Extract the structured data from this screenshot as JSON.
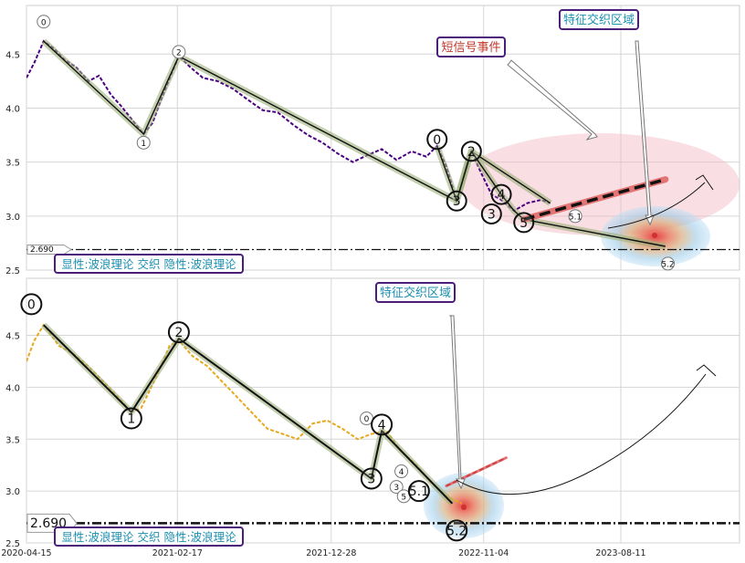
{
  "chart_data": [
    {
      "type": "line",
      "panel": "top",
      "ylim": [
        2.5,
        4.95
      ],
      "y_ticks": [
        2.5,
        3.0,
        3.5,
        4.0,
        4.5
      ],
      "y_tick_labels": [
        "2.5",
        "3.0",
        "3.5",
        "4.0",
        "4.5"
      ],
      "grid": true,
      "series": [
        {
          "style": "purple-dashed-price",
          "color": "#4b0082",
          "points": [
            [
              "2020-04-15",
              4.28
            ],
            [
              "2020-05-01",
              4.42
            ],
            [
              "2020-05-20",
              4.62
            ],
            [
              "2020-06-10",
              4.55
            ],
            [
              "2020-07-01",
              4.45
            ],
            [
              "2020-07-25",
              4.38
            ],
            [
              "2020-08-20",
              4.25
            ],
            [
              "2020-09-10",
              4.3
            ],
            [
              "2020-10-05",
              4.12
            ],
            [
              "2020-10-25",
              4.02
            ],
            [
              "2020-11-15",
              3.9
            ],
            [
              "2020-12-10",
              3.76
            ],
            [
              "2020-12-28",
              3.86
            ],
            [
              "2021-01-15",
              4.08
            ],
            [
              "2021-02-05",
              4.32
            ],
            [
              "2021-02-20",
              4.48
            ],
            [
              "2021-03-15",
              4.38
            ],
            [
              "2021-04-10",
              4.28
            ],
            [
              "2021-05-10",
              4.25
            ],
            [
              "2021-06-10",
              4.18
            ],
            [
              "2021-07-10",
              4.08
            ],
            [
              "2021-08-10",
              3.98
            ],
            [
              "2021-09-10",
              3.96
            ],
            [
              "2021-10-10",
              3.85
            ],
            [
              "2021-11-10",
              3.75
            ],
            [
              "2021-12-10",
              3.68
            ],
            [
              "2022-01-10",
              3.58
            ],
            [
              "2022-02-10",
              3.5
            ],
            [
              "2022-03-10",
              3.56
            ],
            [
              "2022-04-10",
              3.62
            ],
            [
              "2022-05-10",
              3.52
            ],
            [
              "2022-06-10",
              3.6
            ],
            [
              "2022-07-10",
              3.55
            ],
            [
              "2022-08-01",
              3.65
            ],
            [
              "2022-08-20",
              3.46
            ],
            [
              "2022-09-10",
              3.14
            ],
            [
              "2022-10-01",
              3.48
            ],
            [
              "2022-10-10",
              3.6
            ],
            [
              "2022-10-30",
              3.4
            ],
            [
              "2022-11-20",
              3.2
            ],
            [
              "2022-12-10",
              3.15
            ],
            [
              "2023-01-05",
              3.05
            ],
            [
              "2023-02-01",
              3.12
            ],
            [
              "2023-03-01",
              3.15
            ],
            [
              "2023-03-20",
              3.12
            ]
          ]
        },
        {
          "style": "wave-zigzag",
          "points": [
            [
              "2020-05-20",
              4.62
            ],
            [
              "2020-12-10",
              3.76
            ],
            [
              "2021-02-20",
              4.48
            ],
            [
              "2022-09-10",
              3.14
            ],
            [
              "2022-10-01",
              3.48
            ],
            [
              "2022-10-10",
              3.6
            ],
            [
              "2023-03-20",
              3.12
            ]
          ]
        },
        {
          "style": "wave-zigzag",
          "points": [
            [
              "2022-08-01",
              3.65
            ],
            [
              "2022-09-10",
              3.14
            ],
            [
              "2022-10-10",
              3.6
            ],
            [
              "2022-12-10",
              3.2
            ],
            [
              "2023-01-05",
              3.05
            ],
            [
              "2023-01-25",
              2.97
            ],
            [
              "2023-11-10",
              2.72
            ]
          ]
        },
        {
          "style": "red-dashed-projection",
          "points": [
            [
              "2023-01-25",
              2.97
            ],
            [
              "2023-11-10",
              3.34
            ]
          ]
        }
      ],
      "wave_markers": [
        {
          "label": "0",
          "x": "2020-05-20",
          "y": 4.8
        },
        {
          "label": "1",
          "x": "2020-12-10",
          "y": 3.68
        },
        {
          "label": "2",
          "x": "2021-02-20",
          "y": 4.52
        },
        {
          "label": "0",
          "x": "2022-08-01",
          "y": 3.71
        },
        {
          "label": "3",
          "x": "2022-09-10",
          "y": 3.14
        },
        {
          "label": "2",
          "x": "2022-10-10",
          "y": 3.6
        },
        {
          "label": "4",
          "x": "2022-12-10",
          "y": 3.2
        },
        {
          "label": "3",
          "x": "2022-11-20",
          "y": 3.02
        },
        {
          "label": "5",
          "x": "2023-01-25",
          "y": 2.94
        },
        {
          "label": "5.1",
          "x": "2023-05-10",
          "y": 3.0
        },
        {
          "label": "5.2",
          "x": "2023-11-15",
          "y": 2.56
        }
      ],
      "hline": {
        "value": 2.69,
        "label": "2.690"
      },
      "annotations": [
        {
          "text": "短信号事件",
          "target": [
            "2022-11-20",
            3.72
          ]
        },
        {
          "text": "特征交织区域",
          "target": [
            "2023-06-15",
            2.96
          ]
        }
      ],
      "legend_text": "显性:波浪理论 交织 隐性:波浪理论"
    },
    {
      "type": "line",
      "panel": "bottom",
      "ylim": [
        2.5,
        5.05
      ],
      "y_ticks": [
        2.5,
        3.0,
        3.5,
        4.0,
        4.5
      ],
      "y_tick_labels": [
        "2.5",
        "3.0",
        "3.5",
        "4.0",
        "4.5"
      ],
      "x_ticks": [
        "2020-04-15",
        "2021-02-17",
        "2021-12-28",
        "2022-11-04",
        "2023-08-11"
      ],
      "x_tick_labels": [
        "2020-04-15",
        "2021-02-17",
        "2021-12-28",
        "2022-11-04",
        "2023-08-11"
      ],
      "grid": true,
      "series": [
        {
          "style": "orange-dashed-price",
          "color": "#e8a81c",
          "points": [
            [
              "2020-04-15",
              4.25
            ],
            [
              "2020-05-01",
              4.45
            ],
            [
              "2020-05-20",
              4.6
            ],
            [
              "2020-06-20",
              4.4
            ],
            [
              "2020-07-20",
              4.32
            ],
            [
              "2020-08-20",
              4.2
            ],
            [
              "2020-09-20",
              4.05
            ],
            [
              "2020-10-20",
              3.9
            ],
            [
              "2020-11-15",
              3.76
            ],
            [
              "2020-12-05",
              3.8
            ],
            [
              "2021-01-05",
              4.1
            ],
            [
              "2021-02-01",
              4.4
            ],
            [
              "2021-02-20",
              4.45
            ],
            [
              "2021-03-20",
              4.3
            ],
            [
              "2021-04-20",
              4.2
            ],
            [
              "2021-05-20",
              4.05
            ],
            [
              "2021-06-20",
              3.9
            ],
            [
              "2021-07-20",
              3.75
            ],
            [
              "2021-08-20",
              3.6
            ],
            [
              "2021-09-20",
              3.55
            ],
            [
              "2021-10-20",
              3.5
            ],
            [
              "2021-11-20",
              3.65
            ],
            [
              "2021-12-20",
              3.68
            ],
            [
              "2022-01-20",
              3.6
            ],
            [
              "2022-02-20",
              3.5
            ],
            [
              "2022-03-20",
              3.55
            ],
            [
              "2022-04-20",
              3.58
            ],
            [
              "2022-05-20",
              3.38
            ],
            [
              "2022-06-20",
              3.25
            ],
            [
              "2022-07-20",
              3.08
            ],
            [
              "2022-08-20",
              2.95
            ],
            [
              "2022-09-20",
              2.88
            ]
          ]
        },
        {
          "style": "wave-zigzag",
          "points": [
            [
              "2020-05-20",
              4.6
            ],
            [
              "2020-11-15",
              3.76
            ],
            [
              "2021-02-20",
              4.47
            ],
            [
              "2022-03-20",
              3.12
            ],
            [
              "2022-04-10",
              3.58
            ],
            [
              "2022-09-01",
              2.88
            ]
          ]
        },
        {
          "style": "red-dashed-projection",
          "points": [
            [
              "2022-08-20",
              3.05
            ],
            [
              "2022-12-20",
              3.32
            ]
          ]
        }
      ],
      "wave_markers": [
        {
          "label": "0",
          "x": "2020-04-25",
          "y": 4.8
        },
        {
          "label": "1",
          "x": "2020-11-15",
          "y": 3.7
        },
        {
          "label": "2",
          "x": "2021-02-20",
          "y": 4.53
        },
        {
          "label": "0",
          "x": "2022-03-10",
          "y": 3.7
        },
        {
          "label": "3",
          "x": "2022-03-20",
          "y": 3.12
        },
        {
          "label": "4",
          "x": "2022-04-10",
          "y": 3.64
        },
        {
          "label": "4",
          "x": "2022-05-20",
          "y": 3.19
        },
        {
          "label": "3",
          "x": "2022-05-10",
          "y": 3.04
        },
        {
          "label": "5",
          "x": "2022-05-25",
          "y": 2.95
        },
        {
          "label": "5.1",
          "x": "2022-06-25",
          "y": 3.0
        },
        {
          "label": "5.2",
          "x": "2022-09-10",
          "y": 2.62
        }
      ],
      "hline": {
        "value": 2.69,
        "label": "2.690"
      },
      "annotations": [
        {
          "text": "特征交织区域",
          "target": [
            "2022-06-25",
            2.98
          ]
        }
      ],
      "legend_text": "显性:波浪理论 交织 隐性:波浪理论"
    }
  ]
}
